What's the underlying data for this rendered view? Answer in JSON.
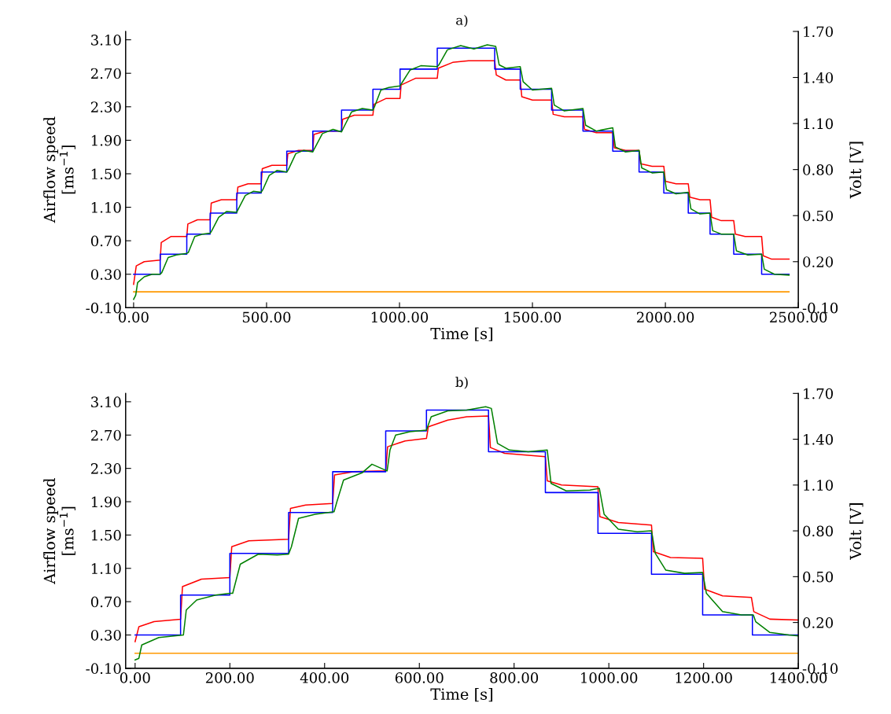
{
  "chart_data": [
    {
      "type": "line",
      "title": "a)",
      "xlabel": "Time [s]",
      "ylabel": "Airflow speed\n[ms$^{−1}$]",
      "y2label": "Volt [V]",
      "grid": false,
      "xlim": [
        -30,
        2500
      ],
      "xticks": [
        {
          "value": 0,
          "label": "0.00"
        },
        {
          "value": 500,
          "label": "500.00"
        },
        {
          "value": 1000,
          "label": "1000.00"
        },
        {
          "value": 1500,
          "label": "1500.00"
        },
        {
          "value": 2000,
          "label": "2000.00"
        },
        {
          "value": 2500,
          "label": "2500.00"
        }
      ],
      "ylim": [
        -0.1,
        3.2
      ],
      "yticks": [
        {
          "value": -0.1,
          "label": "-0.10"
        },
        {
          "value": 0.3,
          "label": "0.30"
        },
        {
          "value": 0.7,
          "label": "0.70"
        },
        {
          "value": 1.1,
          "label": "1.10"
        },
        {
          "value": 1.5,
          "label": "1.50"
        },
        {
          "value": 1.9,
          "label": "1.90"
        },
        {
          "value": 2.3,
          "label": "2.30"
        },
        {
          "value": 2.7,
          "label": "2.70"
        },
        {
          "value": 3.1,
          "label": "3.10"
        }
      ],
      "y2lim": [
        -0.1,
        1.7
      ],
      "y2ticks": [
        {
          "value": -0.1,
          "label": "-0.10"
        },
        {
          "value": 0.2,
          "label": "0.20"
        },
        {
          "value": 0.5,
          "label": "0.50"
        },
        {
          "value": 0.8,
          "label": "0.80"
        },
        {
          "value": 1.1,
          "label": "1.10"
        },
        {
          "value": 1.4,
          "label": "1.40"
        },
        {
          "value": 1.7,
          "label": "1.70"
        }
      ],
      "series": [
        {
          "color": "#ff9900",
          "x": [
            0,
            2465
          ],
          "values": [
            0.09,
            0.09
          ]
        },
        {
          "color": "#ff0000",
          "x": [
            0,
            10,
            40,
            100,
            104,
            140,
            200,
            204,
            240,
            288,
            292,
            330,
            388,
            392,
            430,
            480,
            484,
            520,
            576,
            580,
            620,
            674,
            678,
            720,
            782,
            786,
            830,
            900,
            904,
            950,
            1002,
            1006,
            1060,
            1142,
            1146,
            1200,
            1260,
            1358,
            1364,
            1400,
            1454,
            1460,
            1500,
            1572,
            1578,
            1620,
            1690,
            1696,
            1740,
            1802,
            1808,
            1850,
            1901,
            1907,
            1950,
            1994,
            2000,
            2040,
            2086,
            2092,
            2130,
            2168,
            2174,
            2210,
            2257,
            2263,
            2300,
            2362,
            2368,
            2400,
            2465
          ],
          "values": [
            0.18,
            0.4,
            0.45,
            0.47,
            0.68,
            0.75,
            0.75,
            0.9,
            0.95,
            0.95,
            1.15,
            1.19,
            1.19,
            1.34,
            1.38,
            1.38,
            1.56,
            1.6,
            1.6,
            1.74,
            1.78,
            1.78,
            1.97,
            2.01,
            2.01,
            2.15,
            2.2,
            2.2,
            2.33,
            2.4,
            2.4,
            2.56,
            2.64,
            2.64,
            2.76,
            2.83,
            2.85,
            2.85,
            2.68,
            2.62,
            2.62,
            2.42,
            2.38,
            2.38,
            2.21,
            2.18,
            2.18,
            2.03,
            1.99,
            1.99,
            1.81,
            1.78,
            1.78,
            1.62,
            1.59,
            1.59,
            1.41,
            1.38,
            1.38,
            1.22,
            1.19,
            1.19,
            0.98,
            0.94,
            0.94,
            0.78,
            0.75,
            0.75,
            0.52,
            0.48,
            0.48
          ]
        },
        {
          "type": "step",
          "color": "#0000ff",
          "x": [
            0,
            100,
            200,
            288,
            388,
            480,
            576,
            674,
            782,
            900,
            1002,
            1142,
            1358,
            1454,
            1572,
            1690,
            1802,
            1901,
            1994,
            2086,
            2168,
            2257,
            2362,
            2465
          ],
          "values": [
            0.3,
            0.54,
            0.78,
            1.03,
            1.27,
            1.52,
            1.77,
            2.01,
            2.26,
            2.51,
            2.75,
            3.0,
            2.75,
            2.51,
            2.26,
            2.01,
            1.77,
            1.52,
            1.27,
            1.03,
            0.78,
            0.54,
            0.3,
            0.3
          ]
        },
        {
          "color": "#008000",
          "x": [
            0,
            8,
            15,
            40,
            70,
            100,
            106,
            130,
            160,
            200,
            206,
            230,
            260,
            288,
            294,
            320,
            350,
            388,
            394,
            420,
            450,
            480,
            486,
            510,
            540,
            576,
            582,
            610,
            640,
            674,
            680,
            710,
            750,
            782,
            788,
            820,
            860,
            900,
            906,
            930,
            960,
            1002,
            1008,
            1040,
            1080,
            1142,
            1148,
            1180,
            1230,
            1280,
            1330,
            1362,
            1375,
            1400,
            1454,
            1465,
            1500,
            1572,
            1582,
            1620,
            1690,
            1700,
            1740,
            1802,
            1812,
            1850,
            1901,
            1911,
            1950,
            1994,
            2004,
            2040,
            2086,
            2096,
            2130,
            2168,
            2178,
            2210,
            2257,
            2267,
            2310,
            2362,
            2372,
            2410,
            2465
          ],
          "values": [
            0.0,
            0.05,
            0.2,
            0.27,
            0.3,
            0.3,
            0.32,
            0.5,
            0.53,
            0.55,
            0.56,
            0.75,
            0.78,
            0.79,
            0.82,
            0.98,
            1.05,
            1.04,
            1.08,
            1.24,
            1.29,
            1.28,
            1.31,
            1.48,
            1.54,
            1.52,
            1.55,
            1.74,
            1.78,
            1.76,
            1.8,
            1.98,
            2.03,
            2.0,
            2.04,
            2.24,
            2.28,
            2.26,
            2.3,
            2.5,
            2.53,
            2.55,
            2.58,
            2.74,
            2.79,
            2.78,
            2.8,
            2.98,
            3.03,
            2.99,
            3.04,
            3.02,
            2.8,
            2.76,
            2.78,
            2.6,
            2.5,
            2.52,
            2.32,
            2.25,
            2.28,
            2.08,
            2.01,
            2.05,
            1.82,
            1.76,
            1.78,
            1.57,
            1.51,
            1.52,
            1.31,
            1.26,
            1.28,
            1.08,
            1.02,
            1.03,
            0.82,
            0.78,
            0.78,
            0.58,
            0.53,
            0.54,
            0.36,
            0.3,
            0.29
          ]
        }
      ]
    },
    {
      "type": "line",
      "title": "b)",
      "xlabel": "Time [s]",
      "ylabel": "Airflow speed\n[ms$^{−1}$]",
      "y2label": "Volt [V]",
      "grid": false,
      "xlim": [
        -20,
        1400
      ],
      "xticks": [
        {
          "value": 0,
          "label": "0.00"
        },
        {
          "value": 200,
          "label": "200.00"
        },
        {
          "value": 400,
          "label": "400.00"
        },
        {
          "value": 600,
          "label": "600.00"
        },
        {
          "value": 800,
          "label": "800.00"
        },
        {
          "value": 1000,
          "label": "1000.00"
        },
        {
          "value": 1200,
          "label": "1200.00"
        },
        {
          "value": 1400,
          "label": "1400.00"
        }
      ],
      "ylim": [
        -0.1,
        3.2
      ],
      "yticks": [
        {
          "value": -0.1,
          "label": "-0.10"
        },
        {
          "value": 0.3,
          "label": "0.30"
        },
        {
          "value": 0.7,
          "label": "0.70"
        },
        {
          "value": 1.1,
          "label": "1.10"
        },
        {
          "value": 1.5,
          "label": "1.50"
        },
        {
          "value": 1.9,
          "label": "1.90"
        },
        {
          "value": 2.3,
          "label": "2.30"
        },
        {
          "value": 2.7,
          "label": "2.70"
        },
        {
          "value": 3.1,
          "label": "3.10"
        }
      ],
      "y2lim": [
        -0.1,
        1.7
      ],
      "y2ticks": [
        {
          "value": -0.1,
          "label": "-0.10"
        },
        {
          "value": 0.2,
          "label": "0.20"
        },
        {
          "value": 0.5,
          "label": "0.50"
        },
        {
          "value": 0.8,
          "label": "0.80"
        },
        {
          "value": 1.1,
          "label": "1.10"
        },
        {
          "value": 1.4,
          "label": "1.40"
        },
        {
          "value": 1.7,
          "label": "1.70"
        }
      ],
      "series": [
        {
          "color": "#ff9900",
          "x": [
            0,
            1400
          ],
          "values": [
            0.08,
            0.08
          ]
        },
        {
          "color": "#ff0000",
          "x": [
            0,
            8,
            40,
            96,
            100,
            140,
            200,
            204,
            240,
            324,
            328,
            360,
            417,
            421,
            460,
            529,
            533,
            570,
            615,
            619,
            660,
            700,
            746,
            750,
            780,
            866,
            870,
            900,
            977,
            981,
            1020,
            1090,
            1094,
            1130,
            1198,
            1202,
            1240,
            1301,
            1306,
            1340,
            1400
          ],
          "values": [
            0.22,
            0.4,
            0.46,
            0.49,
            0.88,
            0.97,
            0.99,
            1.36,
            1.43,
            1.45,
            1.82,
            1.86,
            1.88,
            2.22,
            2.26,
            2.27,
            2.56,
            2.63,
            2.66,
            2.8,
            2.88,
            2.92,
            2.93,
            2.55,
            2.48,
            2.44,
            2.15,
            2.1,
            2.08,
            1.72,
            1.65,
            1.62,
            1.3,
            1.23,
            1.22,
            0.85,
            0.77,
            0.75,
            0.58,
            0.49,
            0.48
          ]
        },
        {
          "type": "step",
          "color": "#0000ff",
          "x": [
            0,
            96,
            200,
            324,
            417,
            529,
            615,
            746,
            866,
            977,
            1090,
            1198,
            1303,
            1400
          ],
          "values": [
            0.3,
            0.78,
            1.28,
            1.77,
            2.26,
            2.75,
            3.0,
            2.5,
            2.01,
            1.52,
            1.03,
            0.54,
            0.3,
            0.3
          ]
        },
        {
          "color": "#008000",
          "x": [
            0,
            8,
            14,
            50,
            102,
            108,
            130,
            170,
            200,
            206,
            222,
            260,
            300,
            324,
            330,
            345,
            380,
            420,
            426,
            440,
            480,
            500,
            532,
            538,
            550,
            580,
            615,
            625,
            660,
            700,
            740,
            752,
            765,
            790,
            830,
            870,
            878,
            910,
            960,
            980,
            990,
            1020,
            1060,
            1090,
            1098,
            1120,
            1160,
            1198,
            1206,
            1240,
            1280,
            1305,
            1310,
            1340,
            1380,
            1400
          ],
          "values": [
            0.0,
            0.02,
            0.18,
            0.27,
            0.3,
            0.6,
            0.72,
            0.78,
            0.8,
            0.8,
            1.15,
            1.27,
            1.26,
            1.27,
            1.36,
            1.7,
            1.75,
            1.78,
            1.9,
            2.16,
            2.25,
            2.35,
            2.27,
            2.52,
            2.7,
            2.74,
            2.76,
            2.92,
            2.99,
            3.0,
            3.04,
            3.02,
            2.6,
            2.52,
            2.5,
            2.52,
            2.12,
            2.03,
            2.04,
            2.06,
            1.75,
            1.57,
            1.54,
            1.55,
            1.28,
            1.08,
            1.04,
            1.05,
            0.8,
            0.58,
            0.54,
            0.54,
            0.46,
            0.33,
            0.3,
            0.29
          ]
        }
      ]
    }
  ]
}
